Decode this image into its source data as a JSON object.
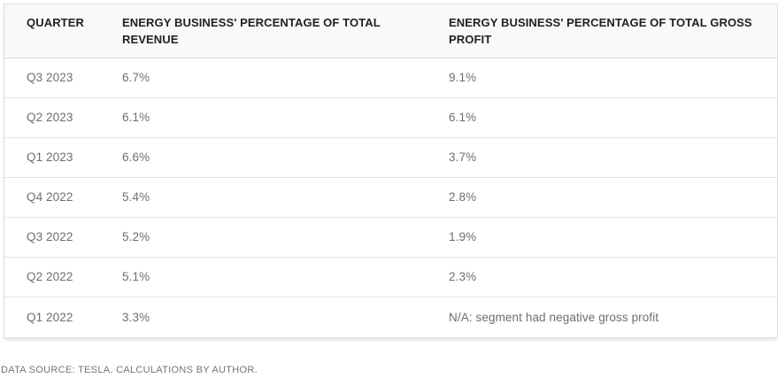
{
  "colors": {
    "header_bg": "#f9f9f9",
    "header_text": "#212121",
    "body_text": "#6e6e6e",
    "border": "#e0e0e0",
    "footer_text": "#757575"
  },
  "chart_data": {
    "type": "table",
    "columns": [
      "QUARTER",
      "ENERGY BUSINESS' PERCENTAGE OF TOTAL REVENUE",
      "ENERGY BUSINESS' PERCENTAGE OF TOTAL GROSS PROFIT"
    ],
    "rows": [
      [
        "Q3 2023",
        "6.7%",
        "9.1%"
      ],
      [
        "Q2 2023",
        "6.1%",
        "6.1%"
      ],
      [
        "Q1 2023",
        "6.6%",
        "3.7%"
      ],
      [
        "Q4 2022",
        "5.4%",
        "2.8%"
      ],
      [
        "Q3 2022",
        "5.2%",
        "1.9%"
      ],
      [
        "Q2 2022",
        "5.1%",
        "2.3%"
      ],
      [
        "Q1 2022",
        "3.3%",
        "N/A: segment had negative gross profit"
      ]
    ],
    "revenue_pct_series": [
      6.7,
      6.1,
      6.6,
      5.4,
      5.2,
      5.1,
      3.3
    ],
    "gross_profit_pct_series": [
      9.1,
      6.1,
      3.7,
      2.8,
      1.9,
      2.3,
      null
    ],
    "source_note": "DATA SOURCE: TESLA. CALCULATIONS BY AUTHOR."
  },
  "footer": {
    "text": "DATA SOURCE: TESLA. CALCULATIONS BY AUTHOR."
  }
}
